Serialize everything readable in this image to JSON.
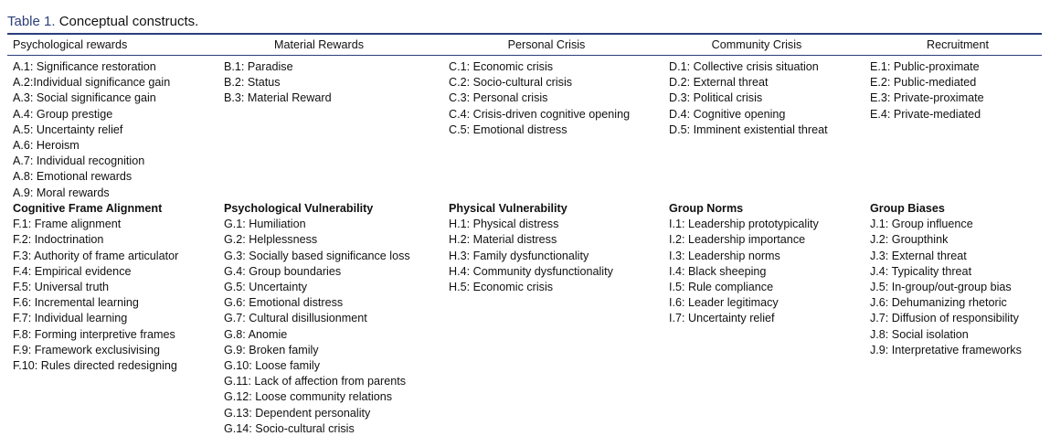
{
  "title": {
    "label": "Table 1.",
    "text": "Conceptual constructs."
  },
  "table": {
    "headers": [
      "Psychological rewards",
      "Material Rewards",
      "Personal Crisis",
      "Community Crisis",
      "Recruitment"
    ],
    "top_columns": [
      [
        "A.1: Significance restoration",
        "A.2:Individual significance gain",
        "A.3: Social significance gain",
        "A.4: Group prestige",
        "A.5: Uncertainty relief",
        "A.6: Heroism",
        "A.7: Individual recognition",
        "A.8: Emotional rewards",
        "A.9: Moral rewards"
      ],
      [
        "B.1: Paradise",
        "B.2: Status",
        "B.3: Material Reward"
      ],
      [
        "C.1: Economic crisis",
        "C.2: Socio-cultural crisis",
        "C.3: Personal crisis",
        "C.4: Crisis-driven cognitive opening",
        "C.5: Emotional distress"
      ],
      [
        "D.1: Collective crisis situation",
        "D.2: External threat",
        "D.3: Political crisis",
        "D.4: Cognitive opening",
        "D.5: Imminent existential threat"
      ],
      [
        "E.1: Public-proximate",
        "E.2: Public-mediated",
        "E.3: Private-proximate",
        "E.4: Private-mediated"
      ]
    ],
    "bottom_columns": [
      {
        "heading": "Cognitive Frame Alignment",
        "items": [
          "F.1: Frame alignment",
          "F.2: Indoctrination",
          "F.3: Authority of frame articulator",
          "F.4: Empirical evidence",
          "F.5: Universal truth",
          "F.6: Incremental learning",
          "F.7: Individual learning",
          "F.8: Forming interpretive frames",
          "F.9: Framework exclusivising",
          "F.10: Rules directed redesigning"
        ]
      },
      {
        "heading": "Psychological Vulnerability",
        "items": [
          "G.1: Humiliation",
          "G.2: Helplessness",
          "G.3: Socially based significance loss",
          "G.4: Group boundaries",
          "G.5: Uncertainty",
          "G.6: Emotional distress",
          "G.7: Cultural disillusionment",
          "G.8: Anomie",
          "G.9: Broken family",
          "G.10: Loose family",
          "G.11: Lack of affection from parents",
          "G.12: Loose community relations",
          "G.13: Dependent personality",
          "G.14: Socio-cultural crisis"
        ]
      },
      {
        "heading": "Physical Vulnerability",
        "items": [
          "H.1: Physical distress",
          "H.2: Material distress",
          "H.3: Family dysfunctionality",
          "H.4: Community dysfunctionality",
          "H.5: Economic crisis"
        ]
      },
      {
        "heading": "Group Norms",
        "items": [
          "I.1: Leadership prototypicality",
          "I.2: Leadership importance",
          "I.3: Leadership norms",
          "I.4: Black sheeping",
          "I.5: Rule compliance",
          "I.6: Leader legitimacy",
          "I.7: Uncertainty relief"
        ]
      },
      {
        "heading": "Group Biases",
        "items": [
          "J.1: Group influence",
          "J.2: Groupthink",
          "J.3: External threat",
          "J.4: Typicality threat",
          "J.5: In-group/out-group bias",
          "J.6: Dehumanizing rhetoric",
          "J.7: Diffusion of responsibility",
          "J.8: Social isolation",
          "J.9: Interpretative frameworks"
        ]
      }
    ]
  }
}
